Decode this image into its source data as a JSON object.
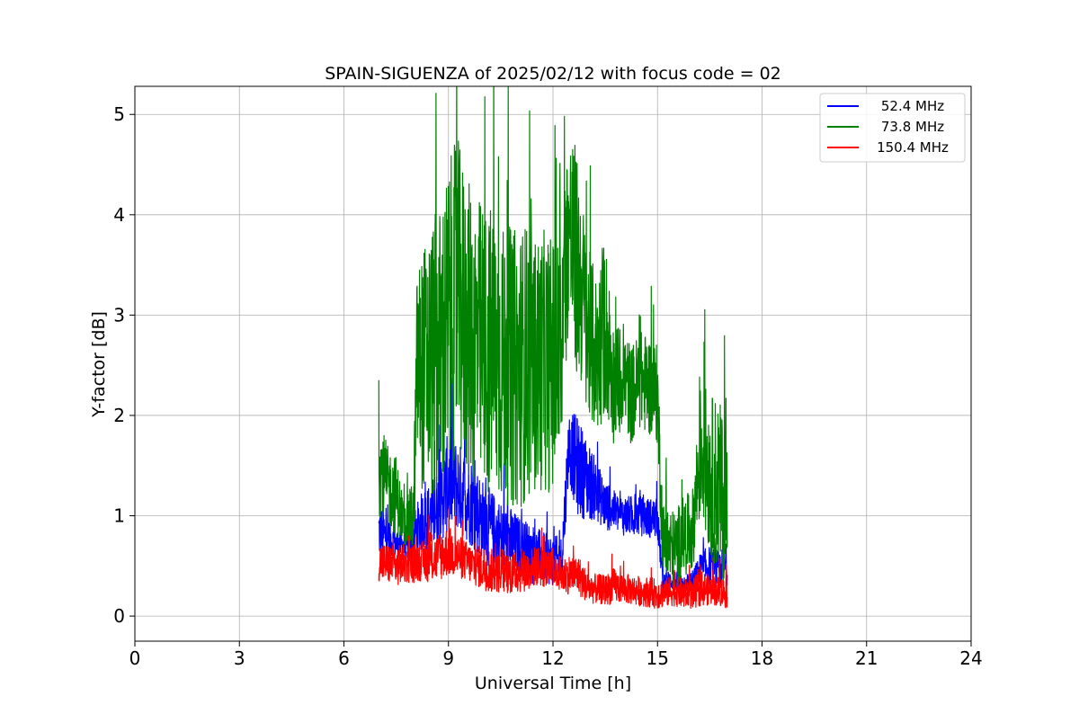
{
  "chart_data": {
    "type": "line",
    "title": "SPAIN-SIGUENZA of 2025/02/12 with focus code = 02",
    "xlabel": "Universal Time [h]",
    "ylabel": "Y-factor [dB]",
    "xlim": [
      0,
      24
    ],
    "ylim": [
      -0.25,
      5.28
    ],
    "xticks": [
      0,
      3,
      6,
      9,
      12,
      15,
      18,
      21,
      24
    ],
    "yticks": [
      0,
      1,
      2,
      3,
      4,
      5
    ],
    "grid": true,
    "legend_position": "top-right",
    "series": [
      {
        "name": "52.4 MHz",
        "color": "#0000ff",
        "x": [
          7.0,
          7.25,
          7.5,
          7.75,
          8.0,
          8.25,
          8.5,
          8.75,
          9.0,
          9.25,
          9.5,
          9.75,
          10.0,
          10.25,
          10.5,
          10.75,
          11.0,
          11.25,
          11.5,
          11.75,
          12.0,
          12.25,
          12.45,
          12.7,
          13.0,
          13.25,
          13.5,
          13.75,
          14.0,
          14.25,
          14.5,
          14.75,
          15.0,
          15.15,
          15.5,
          15.75,
          16.0,
          16.25,
          16.5,
          16.75,
          17.0
        ],
        "y": [
          0.85,
          0.78,
          0.72,
          0.7,
          0.8,
          0.95,
          1.0,
          1.1,
          1.35,
          1.3,
          1.2,
          1.1,
          0.95,
          0.85,
          0.8,
          0.75,
          0.7,
          0.65,
          0.6,
          0.58,
          0.55,
          0.55,
          1.7,
          1.5,
          1.35,
          1.25,
          1.1,
          1.05,
          1.0,
          1.0,
          1.0,
          0.98,
          0.97,
          0.35,
          0.35,
          0.32,
          0.35,
          0.45,
          0.5,
          0.45,
          0.5
        ],
        "spread": [
          0.3,
          0.2,
          0.15,
          0.15,
          0.25,
          0.3,
          0.35,
          0.4,
          0.5,
          0.45,
          0.45,
          0.45,
          0.4,
          0.4,
          0.35,
          0.35,
          0.3,
          0.3,
          0.3,
          0.25,
          0.25,
          0.25,
          0.35,
          0.5,
          0.4,
          0.3,
          0.25,
          0.2,
          0.2,
          0.2,
          0.2,
          0.2,
          0.2,
          0.1,
          0.1,
          0.1,
          0.1,
          0.2,
          0.2,
          0.2,
          0.2
        ]
      },
      {
        "name": "73.8 MHz",
        "color": "#008000",
        "x": [
          7.0,
          7.25,
          7.5,
          7.75,
          8.0,
          8.1,
          8.25,
          8.5,
          8.75,
          9.0,
          9.25,
          9.5,
          9.75,
          10.0,
          10.25,
          10.5,
          10.75,
          11.0,
          11.25,
          11.5,
          11.75,
          12.0,
          12.2,
          12.45,
          12.6,
          12.8,
          13.0,
          13.25,
          13.5,
          13.75,
          14.0,
          14.25,
          14.5,
          14.75,
          15.0,
          15.15,
          15.5,
          15.75,
          16.0,
          16.25,
          16.5,
          16.75,
          17.0
        ],
        "y": [
          1.5,
          1.3,
          1.2,
          0.9,
          1.0,
          2.5,
          2.45,
          2.55,
          2.6,
          2.9,
          3.2,
          2.9,
          2.7,
          2.65,
          2.6,
          2.5,
          2.5,
          2.45,
          2.55,
          2.5,
          2.55,
          2.5,
          2.6,
          3.9,
          3.6,
          3.3,
          2.8,
          2.6,
          2.9,
          2.3,
          2.4,
          2.2,
          2.35,
          2.3,
          2.2,
          0.75,
          0.65,
          0.8,
          0.85,
          1.7,
          1.4,
          1.3,
          1.0
        ],
        "spread": [
          0.5,
          0.4,
          0.4,
          0.2,
          0.4,
          1.0,
          1.2,
          1.4,
          1.5,
          1.6,
          1.6,
          1.5,
          1.5,
          1.5,
          1.5,
          1.4,
          1.4,
          1.4,
          1.4,
          1.3,
          1.3,
          1.3,
          1.2,
          1.0,
          1.2,
          1.0,
          0.9,
          0.8,
          0.9,
          0.6,
          0.5,
          0.5,
          0.5,
          0.5,
          0.5,
          0.4,
          0.4,
          0.4,
          0.4,
          0.7,
          0.8,
          0.9,
          0.8
        ]
      },
      {
        "name": "150.4 MHz",
        "color": "#ff0000",
        "x": [
          7.0,
          7.25,
          7.5,
          7.75,
          8.0,
          8.25,
          8.5,
          8.75,
          9.0,
          9.25,
          9.5,
          9.75,
          10.0,
          10.25,
          10.5,
          10.75,
          11.0,
          11.25,
          11.5,
          11.75,
          12.0,
          12.25,
          12.5,
          12.75,
          13.0,
          13.25,
          13.5,
          13.75,
          14.0,
          14.25,
          14.5,
          14.75,
          15.0,
          15.25,
          15.5,
          15.75,
          16.0,
          16.25,
          16.5,
          16.75,
          17.0
        ],
        "y": [
          0.55,
          0.52,
          0.5,
          0.52,
          0.53,
          0.55,
          0.55,
          0.6,
          0.65,
          0.6,
          0.55,
          0.5,
          0.48,
          0.45,
          0.43,
          0.42,
          0.45,
          0.45,
          0.5,
          0.48,
          0.45,
          0.4,
          0.42,
          0.4,
          0.28,
          0.27,
          0.26,
          0.3,
          0.28,
          0.26,
          0.25,
          0.24,
          0.22,
          0.24,
          0.25,
          0.22,
          0.22,
          0.28,
          0.26,
          0.25,
          0.22
        ],
        "spread": [
          0.2,
          0.2,
          0.2,
          0.2,
          0.2,
          0.2,
          0.22,
          0.25,
          0.25,
          0.22,
          0.2,
          0.2,
          0.22,
          0.22,
          0.2,
          0.2,
          0.22,
          0.2,
          0.2,
          0.2,
          0.18,
          0.18,
          0.2,
          0.2,
          0.15,
          0.15,
          0.15,
          0.18,
          0.15,
          0.15,
          0.15,
          0.15,
          0.15,
          0.15,
          0.15,
          0.15,
          0.15,
          0.18,
          0.15,
          0.15,
          0.15
        ]
      }
    ]
  }
}
